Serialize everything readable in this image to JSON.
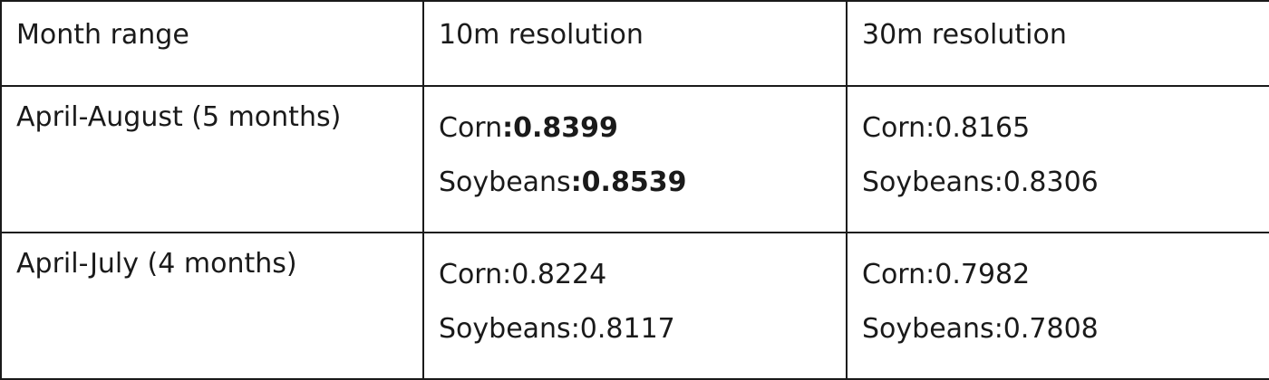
{
  "table": {
    "headers": [
      "Month range",
      "10m resolution",
      "30m resolution"
    ],
    "rows": [
      {
        "label": "April-August (5 months)",
        "res10": {
          "corn_label": "Corn",
          "corn_value": ":0.8399",
          "soy_label": "Soybeans",
          "soy_value": ":0.8539",
          "values_bold": true
        },
        "res30": {
          "corn_label": "Corn",
          "corn_value": ":0.8165",
          "soy_label": "Soybeans",
          "soy_value": ":0.8306"
        }
      },
      {
        "label": "April-July (4 months)",
        "res10": {
          "corn_label": "Corn",
          "corn_value": ":0.8224",
          "soy_label": "Soybeans",
          "soy_value": ":0.8117"
        },
        "res30": {
          "corn_label": "Corn",
          "corn_value": ":0.7982",
          "soy_label": "Soybeans",
          "soy_value": ":0.7808"
        }
      }
    ]
  }
}
